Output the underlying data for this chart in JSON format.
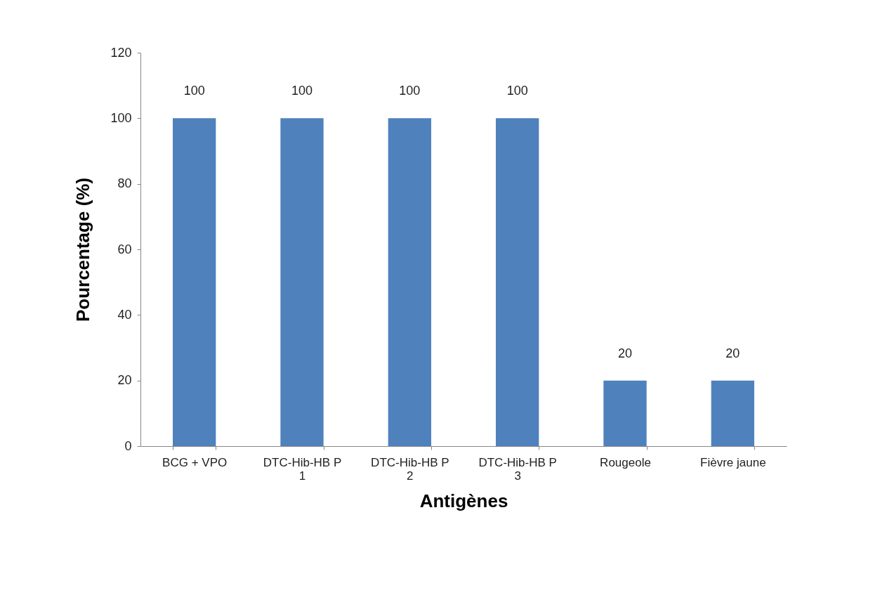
{
  "chart_data": {
    "type": "bar",
    "xlabel": "Antigènes",
    "ylabel": "Pourcentage (%)",
    "categories": [
      "BCG + VPO",
      "DTC-Hib-HB P\n1",
      "DTC-Hib-HB P\n2",
      "DTC-Hib-HB P\n3",
      "Rougeole",
      "Fièvre jaune"
    ],
    "values": [
      100,
      100,
      100,
      100,
      20,
      20
    ],
    "color": "#4f81bd",
    "data_labels": true,
    "ylim": [
      0,
      120
    ],
    "yticks": [
      0,
      20,
      40,
      60,
      80,
      100,
      120
    ],
    "grid": false
  }
}
